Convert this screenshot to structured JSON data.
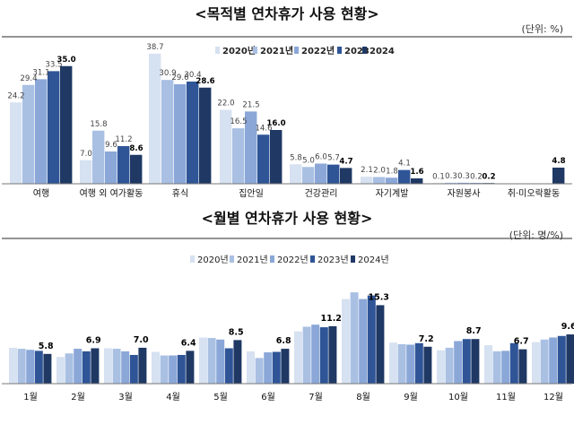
{
  "chart_data": [
    {
      "type": "bar",
      "title": "<목적별 연차휴가 사용 현황>",
      "unit_label": "(단위: %)",
      "legend": [
        "2020년",
        "2021년",
        "2022년",
        "2023",
        "2024"
      ],
      "legend_placement": "top-center",
      "categories": [
        "여행",
        "여행 외 여가활동",
        "휴식",
        "집안일",
        "건강관리",
        "자기계발",
        "자원봉사",
        "취·미오락활동"
      ],
      "series": [
        {
          "name": "2020년",
          "values": [
            24.2,
            7.0,
            38.7,
            22.0,
            5.8,
            2.1,
            0.1,
            null
          ]
        },
        {
          "name": "2021년",
          "values": [
            29.4,
            15.8,
            30.9,
            16.5,
            5.0,
            2.0,
            0.3,
            null
          ]
        },
        {
          "name": "2022년",
          "values": [
            31.1,
            9.6,
            29.6,
            21.5,
            6.0,
            1.8,
            0.3,
            null
          ]
        },
        {
          "name": "2023",
          "values": [
            33.5,
            11.2,
            30.4,
            14.6,
            5.7,
            4.1,
            0.2,
            null
          ]
        },
        {
          "name": "2024",
          "values": [
            35.0,
            8.6,
            28.6,
            16.0,
            4.7,
            1.6,
            0.2,
            4.8
          ]
        }
      ],
      "ylim": [
        0,
        40
      ],
      "grid": false,
      "series_colors": [
        "#d6e1f1",
        "#a9c0e3",
        "#8aa7d8",
        "#2f5597",
        "#1f3864"
      ]
    },
    {
      "type": "bar",
      "title": "<월별 연차휴가 사용 현황>",
      "unit_label": "(단위: 명/%)",
      "legend": [
        "2020년",
        "2021년",
        "2022년",
        "2023년",
        "2024년"
      ],
      "legend_placement": "top-center",
      "categories": [
        "1월",
        "2월",
        "3월",
        "4월",
        "5월",
        "6월",
        "7월",
        "8월",
        "9월",
        "10월",
        "11월",
        "12월"
      ],
      "series": [
        {
          "name": "2020년",
          "values": [
            7.0,
            5.2,
            6.9,
            6.2,
            9.0,
            6.3,
            10.2,
            16.5,
            8.0,
            6.5,
            7.5,
            8.1
          ]
        },
        {
          "name": "2021년",
          "values": [
            6.8,
            5.9,
            6.8,
            5.5,
            8.9,
            5.0,
            11.1,
            17.8,
            7.7,
            7.0,
            6.3,
            8.6
          ]
        },
        {
          "name": "2022년",
          "values": [
            6.6,
            6.8,
            6.3,
            5.5,
            8.6,
            6.1,
            11.5,
            16.5,
            7.6,
            8.3,
            6.4,
            9.0
          ]
        },
        {
          "name": "2023년",
          "values": [
            6.4,
            6.3,
            5.6,
            5.6,
            6.9,
            6.2,
            11.0,
            17.2,
            7.9,
            8.7,
            7.9,
            9.3
          ]
        },
        {
          "name": "2024년",
          "values": [
            5.8,
            6.9,
            7.0,
            6.4,
            8.5,
            6.8,
            11.2,
            15.3,
            7.2,
            8.7,
            6.7,
            9.6
          ]
        }
      ],
      "ylim": [
        0,
        18
      ],
      "grid": false,
      "series_colors": [
        "#d6e1f1",
        "#a9c0e3",
        "#8aa7d8",
        "#2f5597",
        "#1f3864"
      ]
    }
  ]
}
